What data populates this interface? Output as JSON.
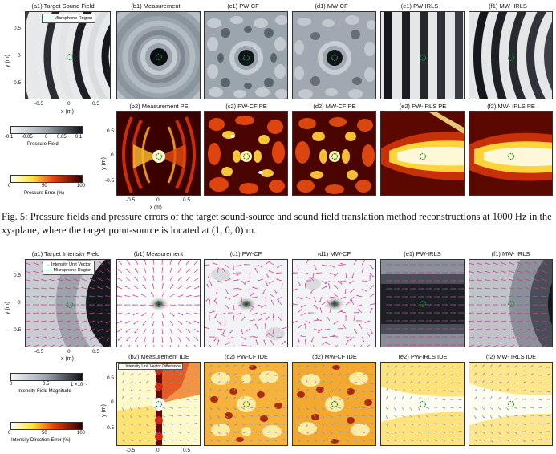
{
  "figure1": {
    "top_row_titles": [
      "(a1) Target Sound Field",
      "(b1) Measurement",
      "(c1) PW-CF",
      "(d1) MW-CF",
      "(e1) PW-IRLS",
      "(f1) MW- IRLS"
    ],
    "bottom_row_titles": [
      "(b2) Measurement PE",
      "(c2) PW-CF PE",
      "(d2) MW-CF PE",
      "(e2) PW-IRLS PE",
      "(f2) MW- IRLS PE"
    ],
    "legend_label": "Microphone Region",
    "ylabel": "y (m)",
    "xlabel": "x (m)",
    "yticks": [
      "0.5",
      "0",
      "-0.5"
    ],
    "xticks": [
      "-0.5",
      "0",
      "0.5"
    ],
    "cbar1_ticks": [
      "-0.1",
      "-0.05",
      "0",
      "0.05",
      "0.1"
    ],
    "cbar1_label": "Pressure Field",
    "cbar2_ticks": [
      "0",
      "50",
      "100"
    ],
    "cbar2_label": "Pressure Error (%)"
  },
  "caption": {
    "text": "Fig. 5: Pressure fields and pressure errors of the target sound-source and sound field translation method reconstructions at 1000 Hz in the xy-plane, where the target point-source is located at (1, 0, 0) m."
  },
  "figure2": {
    "top_row_titles": [
      "(a1) Target Intensity Field",
      "(b1) Measurement",
      "(c1) PW-CF",
      "(d1) MW-CF",
      "(e1) PW-IRLS",
      "(f1) MW- IRLS"
    ],
    "bottom_row_titles": [
      "(b2) Measurement IDE",
      "(c2) PW-CF IDE",
      "(d2) MW-CF IDE",
      "(e2) PW-IRLS IDE",
      "(f2) MW- IRLS IDE"
    ],
    "legend_line1": "Intensity Unit Vector",
    "legend_line2": "Microphone Region",
    "legend_ide": "Intensity Unit Vector Difference",
    "ylabel": "y (m)",
    "xlabel": "x (m)",
    "yticks": [
      "0.5",
      "0",
      "-0.5"
    ],
    "xticks": [
      "-0.5",
      "0",
      "0.5"
    ],
    "cbar1_ticks": [
      "0",
      "0.5",
      "1"
    ],
    "cbar1_exp": "1 ×10⁻⁵",
    "cbar1_label": "Intensity Field Magnitude",
    "cbar2_ticks": [
      "0",
      "50",
      "100"
    ],
    "cbar2_label": "Intensity Direction Error (%)"
  },
  "colors": {
    "arrow": "#e0309a",
    "mic": "#1a8a3a",
    "legend_arrow": "#4a7fd0"
  }
}
